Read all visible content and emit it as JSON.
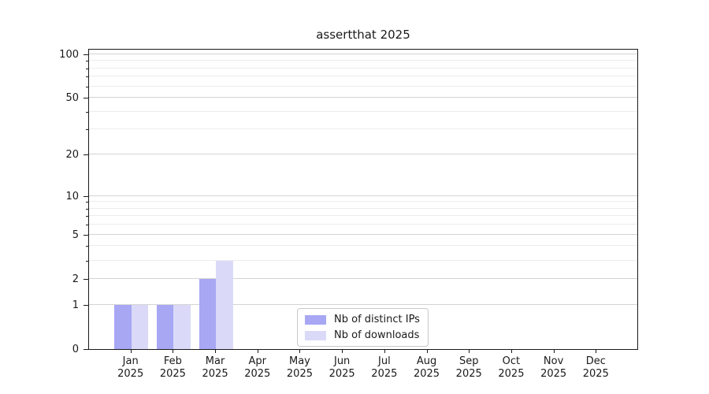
{
  "title": "assertthat 2025",
  "chart_data": {
    "type": "bar",
    "title": "assertthat 2025",
    "categories": [
      "Jan 2025",
      "Feb 2025",
      "Mar 2025",
      "Apr 2025",
      "May 2025",
      "Jun 2025",
      "Jul 2025",
      "Aug 2025",
      "Sep 2025",
      "Oct 2025",
      "Nov 2025",
      "Dec 2025"
    ],
    "series": [
      {
        "name": "Nb of distinct IPs",
        "color": "#a7a7f4",
        "values": [
          1,
          1,
          2,
          0,
          0,
          0,
          0,
          0,
          0,
          0,
          0,
          0
        ]
      },
      {
        "name": "Nb of downloads",
        "color": "#dadaf8",
        "values": [
          1,
          1,
          3,
          0,
          0,
          0,
          0,
          0,
          0,
          0,
          0,
          0
        ]
      }
    ],
    "xlabel": "",
    "ylabel": "",
    "yscale": "log1p",
    "ylim": [
      0,
      110
    ],
    "yticks": [
      0,
      1,
      2,
      5,
      10,
      20,
      50,
      100
    ],
    "minor_yticks": [
      3,
      4,
      6,
      7,
      8,
      9,
      30,
      40,
      60,
      70,
      80,
      90
    ],
    "grid": true,
    "legend_position": "lower center"
  },
  "colors": {
    "bar_distinct_ips": "#a7a7f4",
    "bar_downloads": "#dadaf8",
    "major_grid": "#d4d4d4",
    "minor_grid": "#ececec",
    "axis": "#1a1a1a",
    "background": "#ffffff"
  }
}
